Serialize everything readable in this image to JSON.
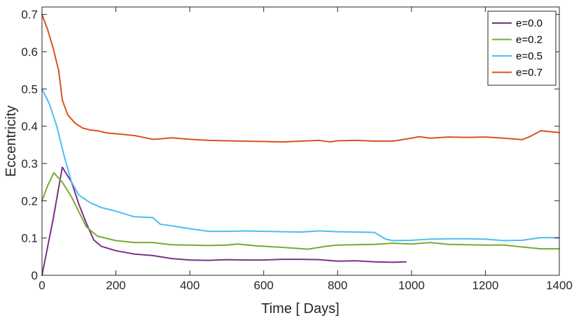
{
  "chart_data": {
    "type": "line",
    "title": "",
    "xlabel": "Time [ Days]",
    "ylabel": "Eccentricity",
    "xlim": [
      0,
      1400
    ],
    "ylim": [
      0,
      0.72
    ],
    "xticks": [
      0,
      200,
      400,
      600,
      800,
      1000,
      1200,
      1400
    ],
    "xtick_labels": [
      "0",
      "200",
      "400",
      "600",
      "800",
      "1000",
      "1200",
      "1400"
    ],
    "yticks": [
      0,
      0.1,
      0.2,
      0.3,
      0.4,
      0.5,
      0.6,
      0.7
    ],
    "ytick_labels": [
      "0",
      "0.1",
      "0.2",
      "0.3",
      "0.4",
      "0.5",
      "0.6",
      "0.7"
    ],
    "grid": false,
    "legend_position": "top-right",
    "series": [
      {
        "name": "e=0.0",
        "color": "#7E2F8E",
        "x": [
          0,
          30,
          55,
          80,
          100,
          120,
          140,
          160,
          200,
          250,
          300,
          350,
          400,
          450,
          500,
          550,
          600,
          650,
          700,
          750,
          800,
          850,
          900,
          950,
          985
        ],
        "y": [
          0.0,
          0.15,
          0.29,
          0.25,
          0.19,
          0.14,
          0.095,
          0.078,
          0.066,
          0.057,
          0.053,
          0.045,
          0.041,
          0.04,
          0.042,
          0.041,
          0.041,
          0.043,
          0.043,
          0.042,
          0.038,
          0.039,
          0.036,
          0.035,
          0.036
        ]
      },
      {
        "name": "e=0.2",
        "color": "#77AC30",
        "x": [
          0,
          15,
          32,
          55,
          80,
          100,
          120,
          150,
          200,
          250,
          300,
          350,
          400,
          450,
          500,
          530,
          580,
          650,
          720,
          770,
          800,
          850,
          900,
          950,
          1000,
          1050,
          1100,
          1150,
          1200,
          1250,
          1300,
          1350,
          1400
        ],
        "y": [
          0.2,
          0.24,
          0.275,
          0.25,
          0.21,
          0.17,
          0.13,
          0.105,
          0.093,
          0.088,
          0.088,
          0.082,
          0.081,
          0.08,
          0.081,
          0.084,
          0.079,
          0.075,
          0.07,
          0.078,
          0.081,
          0.082,
          0.083,
          0.086,
          0.084,
          0.088,
          0.083,
          0.082,
          0.081,
          0.081,
          0.076,
          0.071,
          0.071
        ]
      },
      {
        "name": "e=0.5",
        "color": "#4DBEEE",
        "x": [
          0,
          20,
          40,
          60,
          80,
          100,
          130,
          160,
          200,
          250,
          300,
          320,
          350,
          400,
          450,
          500,
          550,
          600,
          650,
          700,
          750,
          800,
          850,
          900,
          930,
          950,
          1000,
          1050,
          1100,
          1150,
          1200,
          1250,
          1300,
          1350,
          1400
        ],
        "y": [
          0.5,
          0.46,
          0.4,
          0.32,
          0.25,
          0.215,
          0.195,
          0.182,
          0.172,
          0.157,
          0.155,
          0.137,
          0.133,
          0.125,
          0.118,
          0.118,
          0.119,
          0.118,
          0.117,
          0.116,
          0.119,
          0.117,
          0.116,
          0.115,
          0.097,
          0.093,
          0.094,
          0.097,
          0.098,
          0.098,
          0.097,
          0.093,
          0.094,
          0.101,
          0.101
        ]
      },
      {
        "name": "e=0.7",
        "color": "#D95319",
        "x": [
          0,
          15,
          30,
          45,
          55,
          70,
          90,
          110,
          130,
          150,
          175,
          200,
          250,
          300,
          320,
          350,
          400,
          450,
          500,
          550,
          600,
          650,
          700,
          750,
          780,
          800,
          850,
          900,
          950,
          1000,
          1020,
          1050,
          1100,
          1150,
          1200,
          1250,
          1300,
          1320,
          1350,
          1400
        ],
        "y": [
          0.7,
          0.66,
          0.61,
          0.55,
          0.47,
          0.43,
          0.408,
          0.395,
          0.39,
          0.388,
          0.382,
          0.38,
          0.375,
          0.365,
          0.366,
          0.369,
          0.365,
          0.362,
          0.361,
          0.36,
          0.359,
          0.358,
          0.36,
          0.362,
          0.358,
          0.361,
          0.362,
          0.36,
          0.36,
          0.368,
          0.372,
          0.368,
          0.371,
          0.37,
          0.371,
          0.368,
          0.364,
          0.372,
          0.388,
          0.383
        ]
      }
    ]
  }
}
